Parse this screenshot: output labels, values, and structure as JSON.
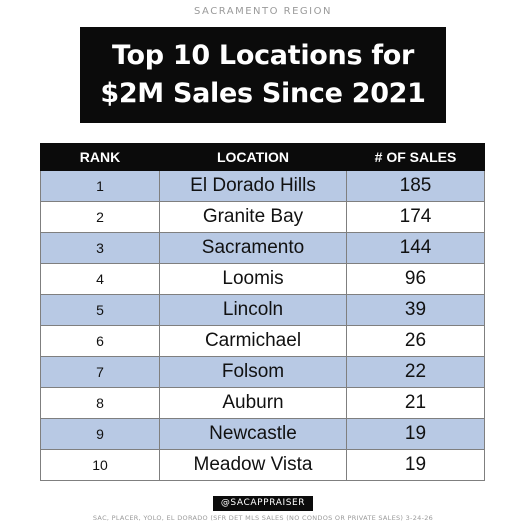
{
  "header": {
    "region": "SACRAMENTO REGION",
    "title_line1": "Top 10 Locations for",
    "title_line2": "$2M Sales Since 2021"
  },
  "chart_data": {
    "type": "table",
    "columns": [
      "RANK",
      "LOCATION",
      "# OF SALES"
    ],
    "rows": [
      {
        "rank": "1",
        "location": "El Dorado Hills",
        "sales": "185"
      },
      {
        "rank": "2",
        "location": "Granite Bay",
        "sales": "174"
      },
      {
        "rank": "3",
        "location": "Sacramento",
        "sales": "144"
      },
      {
        "rank": "4",
        "location": "Loomis",
        "sales": "96"
      },
      {
        "rank": "5",
        "location": "Lincoln",
        "sales": "39"
      },
      {
        "rank": "6",
        "location": "Carmichael",
        "sales": "26"
      },
      {
        "rank": "7",
        "location": "Folsom",
        "sales": "22"
      },
      {
        "rank": "8",
        "location": "Auburn",
        "sales": "21"
      },
      {
        "rank": "9",
        "location": "Newcastle",
        "sales": "19"
      },
      {
        "rank": "10",
        "location": "Meadow Vista",
        "sales": "19"
      }
    ]
  },
  "footer": {
    "handle": "@SACAPPRAISER",
    "source": "SAC, PLACER, YOLO, EL DORADO (SFR DET MLS SALES (NO CONDOS OR PRIVATE SALES) 3-24-26"
  },
  "colors": {
    "header_bg": "#0b0b0b",
    "row_shade": "#b8c9e4",
    "row_plain": "#ffffff"
  }
}
